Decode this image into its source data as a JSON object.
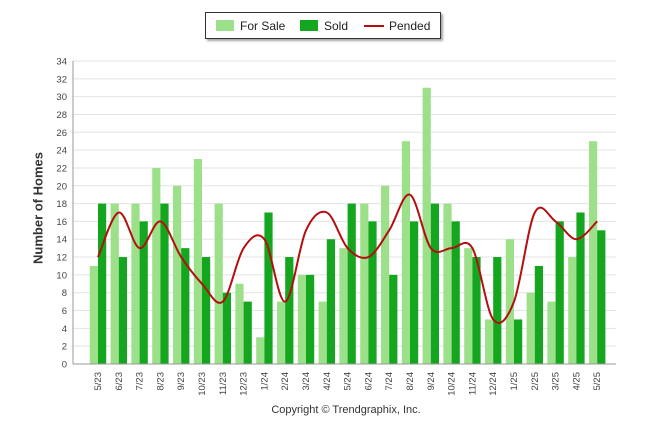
{
  "chart_data": {
    "type": "bar",
    "ylabel": "Number of Homes",
    "ylim": [
      0,
      34
    ],
    "y_ticks": [
      0,
      2,
      4,
      6,
      8,
      10,
      12,
      14,
      16,
      18,
      20,
      22,
      24,
      26,
      28,
      30,
      32,
      34
    ],
    "grid": true,
    "legend": "top-center",
    "categories": [
      "5/23",
      "6/23",
      "7/23",
      "8/23",
      "9/23",
      "10/23",
      "11/23",
      "12/23",
      "1/24",
      "2/24",
      "3/24",
      "4/24",
      "5/24",
      "6/24",
      "7/24",
      "8/24",
      "9/24",
      "10/24",
      "11/24",
      "12/24",
      "1/25",
      "2/25",
      "3/25",
      "4/25",
      "5/25"
    ],
    "series": [
      {
        "name": "For Sale",
        "kind": "bar",
        "color": "#9de08a",
        "values": [
          11,
          18,
          18,
          22,
          20,
          23,
          18,
          9,
          3,
          7,
          10,
          7,
          13,
          18,
          20,
          25,
          31,
          18,
          13,
          5,
          14,
          8,
          7,
          12,
          25
        ]
      },
      {
        "name": "Sold",
        "kind": "bar",
        "color": "#14a61e",
        "values": [
          18,
          12,
          16,
          18,
          13,
          12,
          8,
          7,
          17,
          12,
          10,
          14,
          18,
          16,
          10,
          16,
          18,
          16,
          12,
          12,
          5,
          11,
          16,
          17,
          15
        ]
      },
      {
        "name": "Pended",
        "kind": "line",
        "color": "#b30f0f",
        "values": [
          12,
          17,
          13,
          16,
          12,
          9,
          7,
          13,
          14,
          7,
          15,
          17,
          13,
          12,
          15,
          19,
          13,
          13,
          13,
          5,
          7,
          17,
          16,
          14,
          16
        ]
      }
    ]
  },
  "copyright": "Copyright © Trendgraphix, Inc."
}
